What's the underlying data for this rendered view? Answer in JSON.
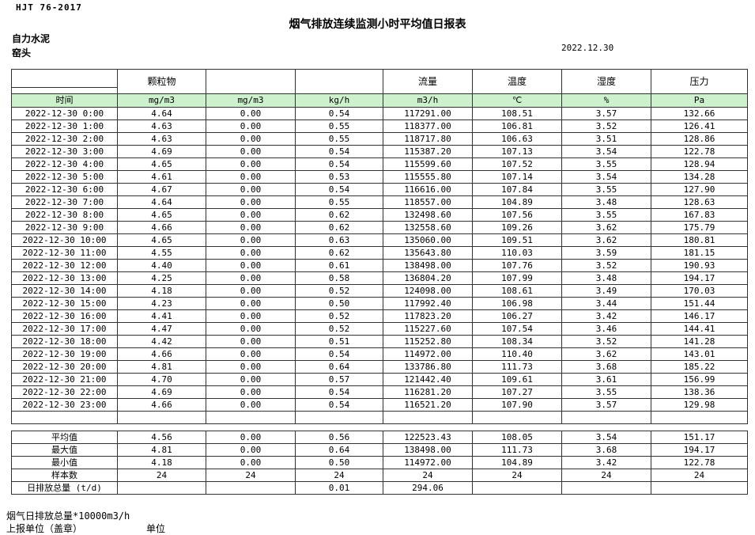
{
  "meta": {
    "standard": "HJT  76-2017",
    "title": "烟气排放连续监测小时平均值日报表",
    "company": "自力水泥",
    "station": "窑头",
    "date": "2022.12.30"
  },
  "colors": {
    "unit_row_green": "#ccf1cc",
    "border": "#333333"
  },
  "table": {
    "header_groups": [
      "",
      "颗粒物",
      "",
      "",
      "流量",
      "温度",
      "湿度",
      "压力"
    ],
    "unit_row": [
      "时间",
      "mg/m3",
      "mg/m3",
      "kg/h",
      "m3/h",
      "℃",
      "%",
      "Pa"
    ],
    "rows": [
      [
        "2022-12-30 0:00",
        "4.64",
        "0.00",
        "0.54",
        "117291.00",
        "108.51",
        "3.57",
        "132.66"
      ],
      [
        "2022-12-30 1:00",
        "4.63",
        "0.00",
        "0.55",
        "118377.00",
        "106.81",
        "3.52",
        "126.41"
      ],
      [
        "2022-12-30 2:00",
        "4.63",
        "0.00",
        "0.55",
        "118717.80",
        "106.63",
        "3.51",
        "128.86"
      ],
      [
        "2022-12-30 3:00",
        "4.69",
        "0.00",
        "0.54",
        "115387.20",
        "107.13",
        "3.54",
        "122.78"
      ],
      [
        "2022-12-30 4:00",
        "4.65",
        "0.00",
        "0.54",
        "115599.60",
        "107.52",
        "3.55",
        "128.94"
      ],
      [
        "2022-12-30 5:00",
        "4.61",
        "0.00",
        "0.53",
        "115555.80",
        "107.14",
        "3.54",
        "134.28"
      ],
      [
        "2022-12-30 6:00",
        "4.67",
        "0.00",
        "0.54",
        "116616.00",
        "107.84",
        "3.55",
        "127.90"
      ],
      [
        "2022-12-30 7:00",
        "4.64",
        "0.00",
        "0.55",
        "118557.00",
        "104.89",
        "3.48",
        "128.63"
      ],
      [
        "2022-12-30 8:00",
        "4.65",
        "0.00",
        "0.62",
        "132498.60",
        "107.56",
        "3.55",
        "167.83"
      ],
      [
        "2022-12-30 9:00",
        "4.66",
        "0.00",
        "0.62",
        "132558.60",
        "109.26",
        "3.62",
        "175.79"
      ],
      [
        "2022-12-30 10:00",
        "4.65",
        "0.00",
        "0.63",
        "135060.00",
        "109.51",
        "3.62",
        "180.81"
      ],
      [
        "2022-12-30 11:00",
        "4.55",
        "0.00",
        "0.62",
        "135643.80",
        "110.03",
        "3.59",
        "181.15"
      ],
      [
        "2022-12-30 12:00",
        "4.40",
        "0.00",
        "0.61",
        "138498.00",
        "107.76",
        "3.52",
        "190.93"
      ],
      [
        "2022-12-30 13:00",
        "4.25",
        "0.00",
        "0.58",
        "136804.20",
        "107.99",
        "3.48",
        "194.17"
      ],
      [
        "2022-12-30 14:00",
        "4.18",
        "0.00",
        "0.52",
        "124098.00",
        "108.61",
        "3.49",
        "170.03"
      ],
      [
        "2022-12-30 15:00",
        "4.23",
        "0.00",
        "0.50",
        "117992.40",
        "106.98",
        "3.44",
        "151.44"
      ],
      [
        "2022-12-30 16:00",
        "4.41",
        "0.00",
        "0.52",
        "117823.20",
        "106.27",
        "3.42",
        "146.17"
      ],
      [
        "2022-12-30 17:00",
        "4.47",
        "0.00",
        "0.52",
        "115227.60",
        "107.54",
        "3.46",
        "144.41"
      ],
      [
        "2022-12-30 18:00",
        "4.42",
        "0.00",
        "0.51",
        "115252.80",
        "108.34",
        "3.52",
        "141.28"
      ],
      [
        "2022-12-30 19:00",
        "4.66",
        "0.00",
        "0.54",
        "114972.00",
        "110.40",
        "3.62",
        "143.01"
      ],
      [
        "2022-12-30 20:00",
        "4.81",
        "0.00",
        "0.64",
        "133786.80",
        "111.73",
        "3.68",
        "185.22"
      ],
      [
        "2022-12-30 21:00",
        "4.70",
        "0.00",
        "0.57",
        "121442.40",
        "109.61",
        "3.61",
        "156.99"
      ],
      [
        "2022-12-30 22:00",
        "4.69",
        "0.00",
        "0.54",
        "116281.20",
        "107.27",
        "3.55",
        "138.36"
      ],
      [
        "2022-12-30 23:00",
        "4.66",
        "0.00",
        "0.54",
        "116521.20",
        "107.90",
        "3.57",
        "129.98"
      ]
    ],
    "summary": [
      {
        "label": "平均值",
        "values": [
          "4.56",
          "0.00",
          "0.56",
          "122523.43",
          "108.05",
          "3.54",
          "151.17"
        ]
      },
      {
        "label": "最大值",
        "values": [
          "4.81",
          "0.00",
          "0.64",
          "138498.00",
          "111.73",
          "3.68",
          "194.17"
        ]
      },
      {
        "label": "最小值",
        "values": [
          "4.18",
          "0.00",
          "0.50",
          "114972.00",
          "104.89",
          "3.42",
          "122.78"
        ]
      },
      {
        "label": "样本数",
        "values": [
          "24",
          "24",
          "24",
          "24",
          "24",
          "24",
          "24"
        ]
      },
      {
        "label": "日排放总量 (t/d)",
        "values": [
          "",
          "",
          "0.01",
          "294.06",
          "",
          "",
          ""
        ]
      }
    ]
  },
  "footer": {
    "note_total": "烟气日排放总量*10000m3/h",
    "report_unit": "上报单位（盖章）",
    "unit_word": "单位"
  }
}
